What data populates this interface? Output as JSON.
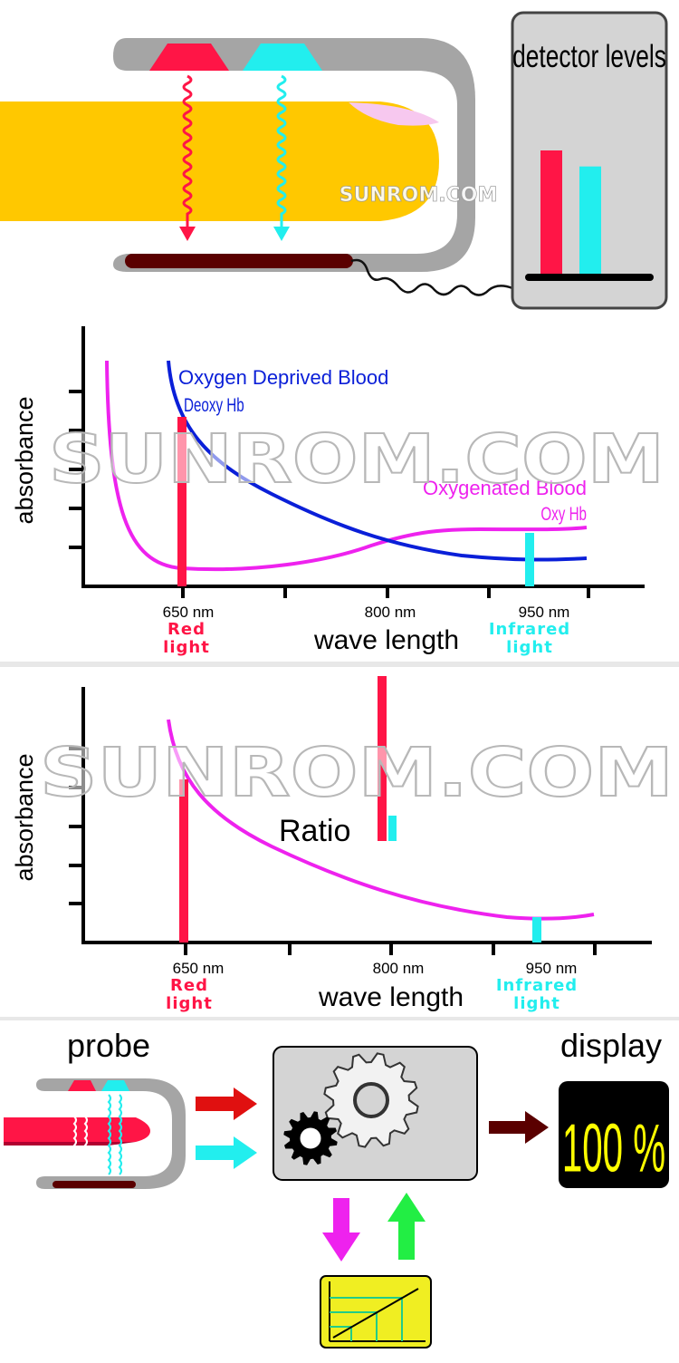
{
  "watermark": {
    "small": "SUNROM.COM",
    "large": "SUNROM.COM"
  },
  "panel1": {
    "detector_title": "detector levels",
    "levels": [
      {
        "name": "red",
        "value": 1.0
      },
      {
        "name": "infrared",
        "value": 0.87
      }
    ]
  },
  "panel2": {
    "ylabel": "absorbance",
    "xlabel": "wave length",
    "ticks": [
      "650 nm",
      "800 nm",
      "950 nm"
    ],
    "red_label": [
      "Red",
      "light"
    ],
    "ir_label": [
      "Infrared",
      "light"
    ],
    "deoxy_title": "Oxygen Deprived Blood",
    "deoxy_sub": "Deoxy Hb",
    "oxy_title": "Oxygenated Blood",
    "oxy_sub": "Oxy Hb"
  },
  "panel3": {
    "ylabel": "absorbance",
    "xlabel": "wave length",
    "ticks": [
      "650 nm",
      "800 nm",
      "950 nm"
    ],
    "red_label": [
      "Red",
      "light"
    ],
    "ir_label": [
      "Infrared",
      "light"
    ],
    "ratio_label": "Ratio"
  },
  "panel4": {
    "probe_label": "probe",
    "display_label": "display",
    "display_value": "100 %"
  },
  "colors": {
    "red": "#ff1546",
    "cyan": "#22eeee",
    "magenta": "#ee22ee",
    "blue": "#0a1fd8",
    "finger": "#ffc800",
    "clip": "#a5a5a5",
    "sensor": "#5a0000"
  }
}
